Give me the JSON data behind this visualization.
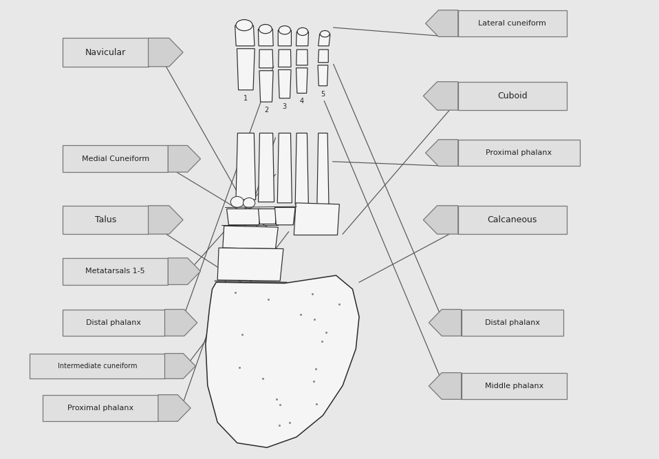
{
  "background_color": "#e8e8e8",
  "figsize": [
    9.58,
    6.67
  ],
  "dpi": 100,
  "left_labels": [
    {
      "text": "Navicular",
      "bx": 0.095,
      "by": 0.855,
      "bw": 0.13,
      "bh": 0.062
    },
    {
      "text": "Medial Cuneiform",
      "bx": 0.095,
      "by": 0.625,
      "bw": 0.16,
      "bh": 0.058
    },
    {
      "text": "Talus",
      "bx": 0.095,
      "by": 0.49,
      "bw": 0.13,
      "bh": 0.062
    },
    {
      "text": "Metatarsals 1-5",
      "bx": 0.095,
      "by": 0.38,
      "bw": 0.16,
      "bh": 0.058
    },
    {
      "text": "Distal phalanx",
      "bx": 0.095,
      "by": 0.268,
      "bw": 0.155,
      "bh": 0.058
    },
    {
      "text": "Intermediate cuneiform",
      "bx": 0.045,
      "by": 0.175,
      "bw": 0.205,
      "bh": 0.055
    },
    {
      "text": "Proximal phalanx",
      "bx": 0.065,
      "by": 0.082,
      "bw": 0.175,
      "bh": 0.058
    }
  ],
  "right_labels": [
    {
      "text": "Lateral cuneiform",
      "bx": 0.695,
      "by": 0.92,
      "bw": 0.165,
      "bh": 0.058
    },
    {
      "text": "Cuboid",
      "bx": 0.695,
      "by": 0.76,
      "bw": 0.165,
      "bh": 0.062
    },
    {
      "text": "Proximal phalanx",
      "bx": 0.695,
      "by": 0.638,
      "bw": 0.185,
      "bh": 0.058
    },
    {
      "text": "Calcaneous",
      "bx": 0.695,
      "by": 0.49,
      "bw": 0.165,
      "bh": 0.062
    },
    {
      "text": "Distal phalanx",
      "bx": 0.7,
      "by": 0.268,
      "bw": 0.155,
      "bh": 0.058
    },
    {
      "text": "Middle phalanx",
      "bx": 0.7,
      "by": 0.13,
      "bw": 0.16,
      "bh": 0.058
    }
  ],
  "pointer_lines": [
    [
      0.252,
      0.855,
      0.42,
      0.43
    ],
    [
      0.268,
      0.625,
      0.418,
      0.495
    ],
    [
      0.252,
      0.49,
      0.415,
      0.34
    ],
    [
      0.268,
      0.38,
      0.418,
      0.62
    ],
    [
      0.268,
      0.268,
      0.415,
      0.855
    ],
    [
      0.268,
      0.175,
      0.438,
      0.495
    ],
    [
      0.268,
      0.082,
      0.418,
      0.7
    ],
    [
      0.682,
      0.92,
      0.506,
      0.94
    ],
    [
      0.682,
      0.76,
      0.52,
      0.49
    ],
    [
      0.682,
      0.638,
      0.505,
      0.648
    ],
    [
      0.682,
      0.49,
      0.545,
      0.385
    ],
    [
      0.682,
      0.268,
      0.506,
      0.86
    ],
    [
      0.682,
      0.13,
      0.492,
      0.78
    ]
  ],
  "line_color": "#555555",
  "box_facecolor": "#e0e0e0",
  "box_edgecolor": "#777777",
  "text_color": "#222222",
  "arrow_facecolor": "#d0d0d0",
  "arrow_edgecolor": "#777777"
}
